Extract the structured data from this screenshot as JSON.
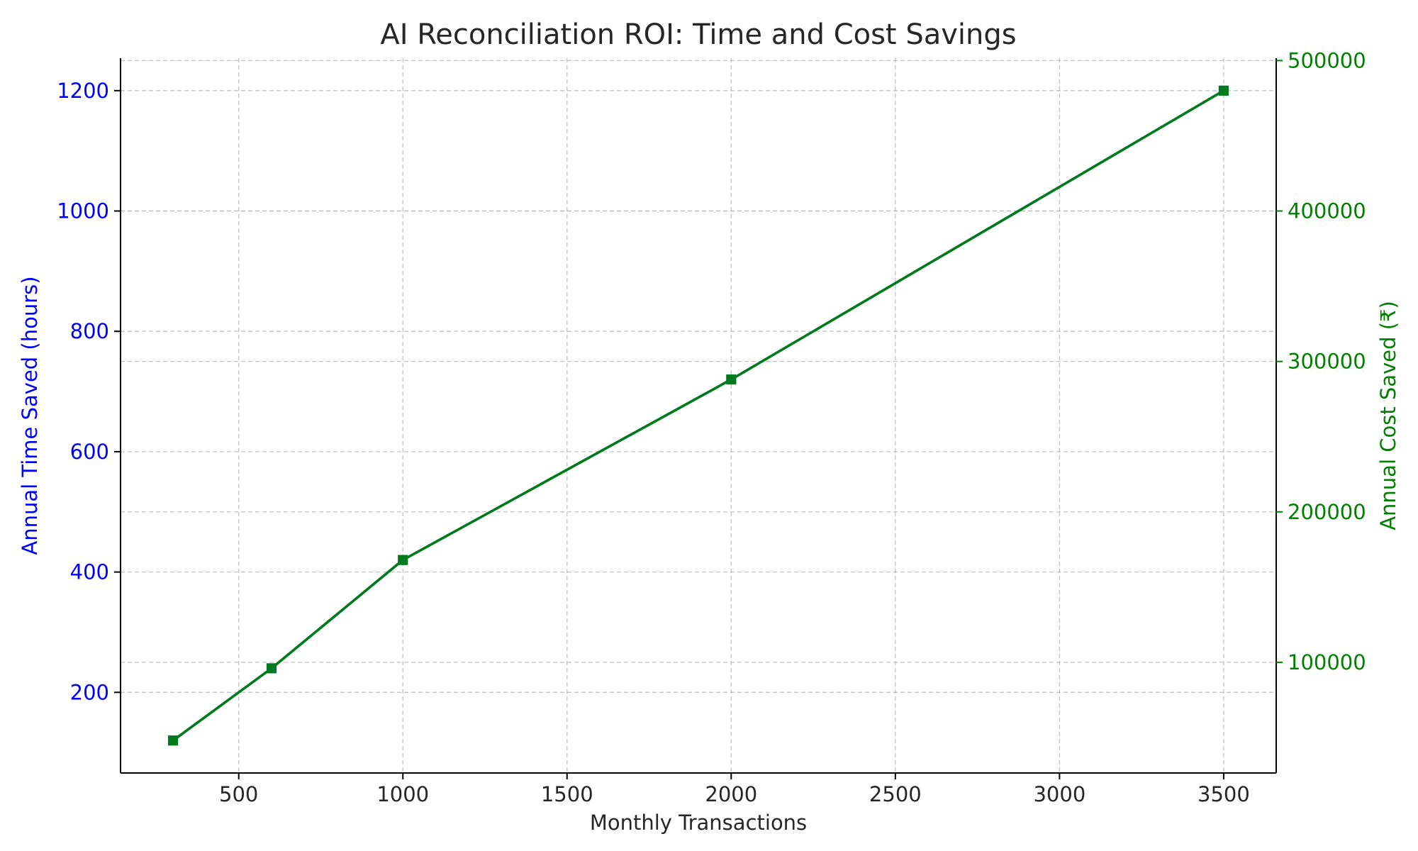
{
  "chart_data": {
    "type": "line",
    "title": "AI Reconciliation ROI: Time and Cost Savings",
    "xlabel": "Monthly Transactions",
    "ylabel_left": "Annual Time Saved (hours)",
    "ylabel_right": "Annual Cost Saved (₹)",
    "x": [
      300,
      600,
      1000,
      2000,
      3500
    ],
    "xlim": [
      140,
      3660
    ],
    "xticks": [
      500,
      1000,
      1500,
      2000,
      2500,
      3000,
      3500
    ],
    "ylim_left": [
      66,
      1254
    ],
    "yticks_left": [
      200,
      400,
      600,
      800,
      1000,
      1200
    ],
    "ylim_right": [
      26400,
      501600
    ],
    "yticks_right": [
      100000,
      200000,
      300000,
      400000,
      500000
    ],
    "grid": true,
    "colors": {
      "left_axis": "#0000ff",
      "right_axis": "#008000",
      "line": "#007a1f",
      "marker": "#007a1f",
      "text": "#262626"
    },
    "series": [
      {
        "axis": "left",
        "values": [
          120,
          240,
          420,
          720,
          1200
        ],
        "marker": "square"
      },
      {
        "axis": "right",
        "values": [
          48000,
          96000,
          168000,
          288000,
          480000
        ],
        "marker": "square"
      }
    ]
  }
}
